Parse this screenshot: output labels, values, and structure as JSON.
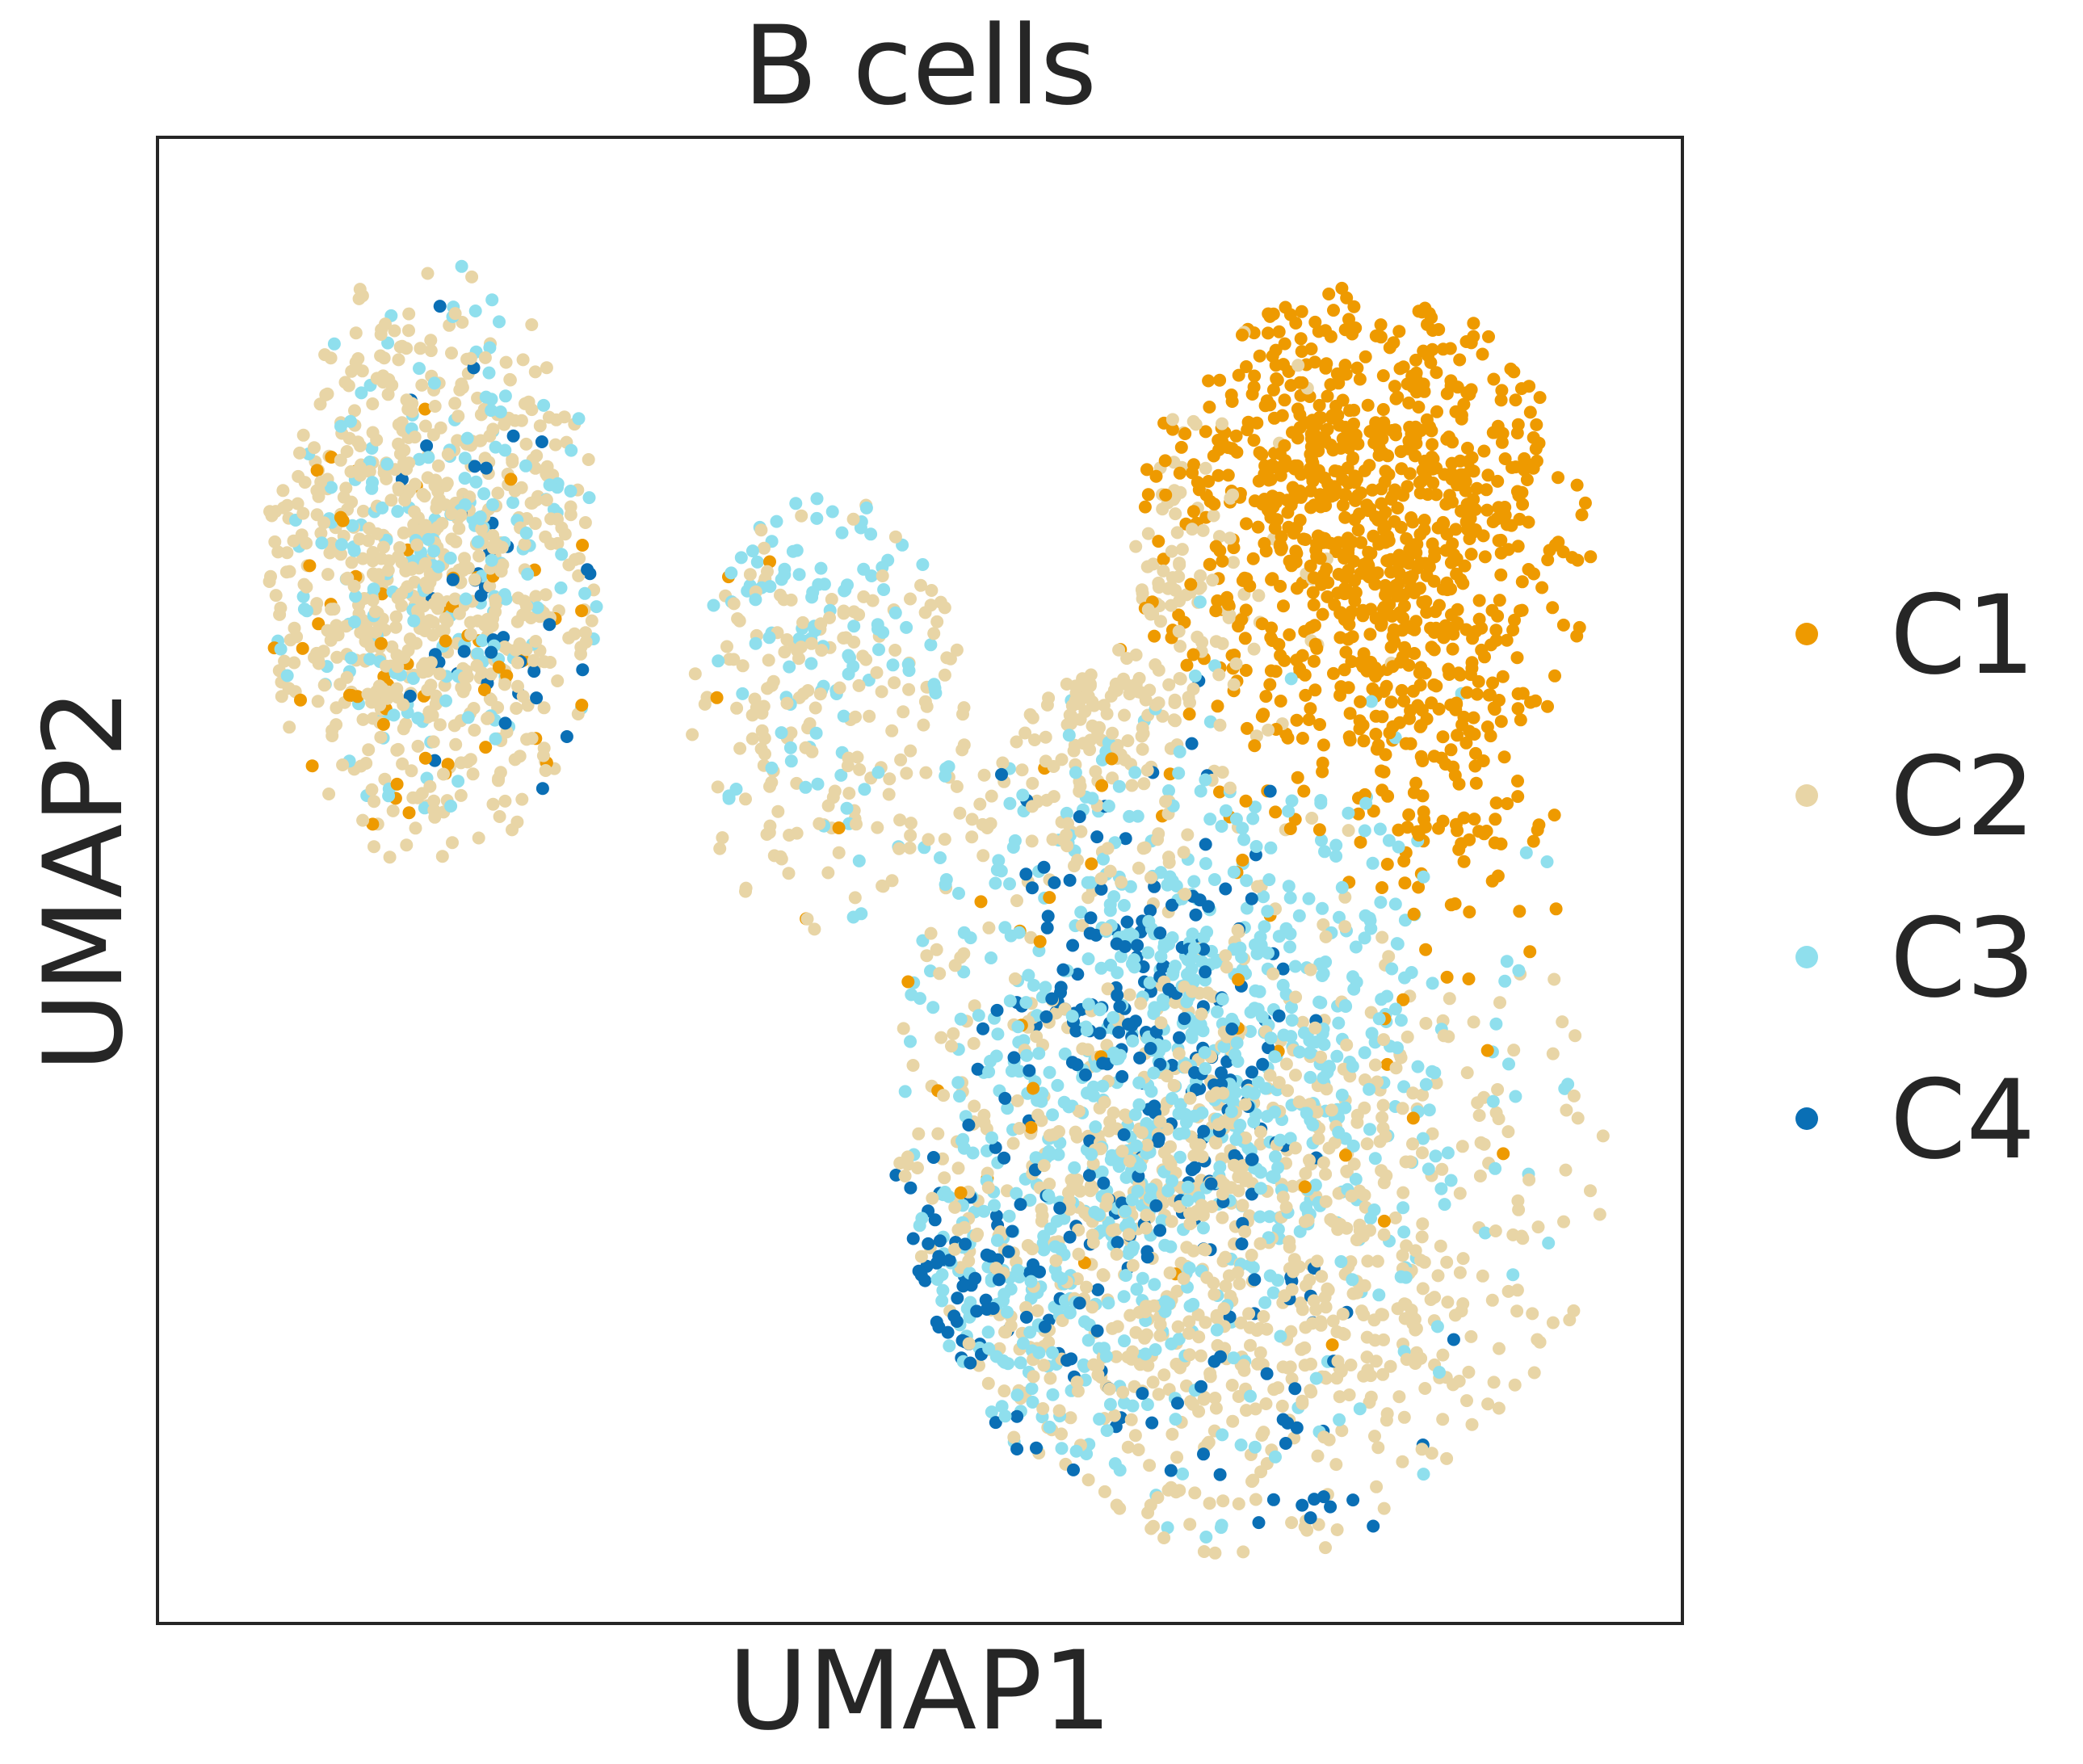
{
  "chart_data": {
    "type": "scatter",
    "title": "B cells",
    "xlabel": "UMAP1",
    "ylabel": "UMAP2",
    "xlim": [
      0,
      100
    ],
    "ylim": [
      0,
      100
    ],
    "grid": false,
    "ticks": false,
    "legend": {
      "placement": "right",
      "entries": [
        "C1",
        "C2",
        "C3",
        "C4"
      ]
    },
    "colors": {
      "C1": "#ee9a00",
      "C2": "#e8d5a6",
      "C3": "#8fdfed",
      "C4": "#0a6fb5"
    },
    "series": [
      {
        "name": "C1",
        "color": "#ee9a00",
        "count": 1100,
        "regions": [
          {
            "center": [
              79,
              76
            ],
            "spread": [
              7,
              9
            ],
            "weight": 0.75
          },
          {
            "center": [
              85,
              60
            ],
            "spread": [
              4,
              7
            ],
            "weight": 0.15
          },
          {
            "center": [
              18,
              65
            ],
            "spread": [
              7,
              9
            ],
            "weight": 0.06
          },
          {
            "center": [
              70,
              40
            ],
            "spread": [
              14,
              14
            ],
            "weight": 0.04
          }
        ]
      },
      {
        "name": "C2",
        "color": "#e8d5a6",
        "count": 2000,
        "regions": [
          {
            "center": [
              18,
              71
            ],
            "spread": [
              7,
              10
            ],
            "weight": 0.32
          },
          {
            "center": [
              70,
              25
            ],
            "spread": [
              12,
              10
            ],
            "weight": 0.45
          },
          {
            "center": [
              45,
              60
            ],
            "spread": [
              7,
              10
            ],
            "weight": 0.1
          },
          {
            "center": [
              62,
              70
            ],
            "spread": [
              5,
              10
            ],
            "weight": 0.13
          }
        ]
      },
      {
        "name": "C3",
        "color": "#8fdfed",
        "count": 1200,
        "regions": [
          {
            "center": [
              68,
              38
            ],
            "spread": [
              9,
              11
            ],
            "weight": 0.65
          },
          {
            "center": [
              18,
              71
            ],
            "spread": [
              6,
              10
            ],
            "weight": 0.15
          },
          {
            "center": [
              56,
              20
            ],
            "spread": [
              7,
              6
            ],
            "weight": 0.12
          },
          {
            "center": [
              44,
              70
            ],
            "spread": [
              5,
              8
            ],
            "weight": 0.08
          }
        ]
      },
      {
        "name": "C4",
        "color": "#0a6fb5",
        "count": 360,
        "regions": [
          {
            "center": [
              65,
              40
            ],
            "spread": [
              5,
              8
            ],
            "weight": 0.6
          },
          {
            "center": [
              50,
              22
            ],
            "spread": [
              5,
              5
            ],
            "weight": 0.2
          },
          {
            "center": [
              70,
              15
            ],
            "spread": [
              10,
              6
            ],
            "weight": 0.12
          },
          {
            "center": [
              22,
              70
            ],
            "spread": [
              6,
              8
            ],
            "weight": 0.08
          }
        ]
      }
    ]
  }
}
